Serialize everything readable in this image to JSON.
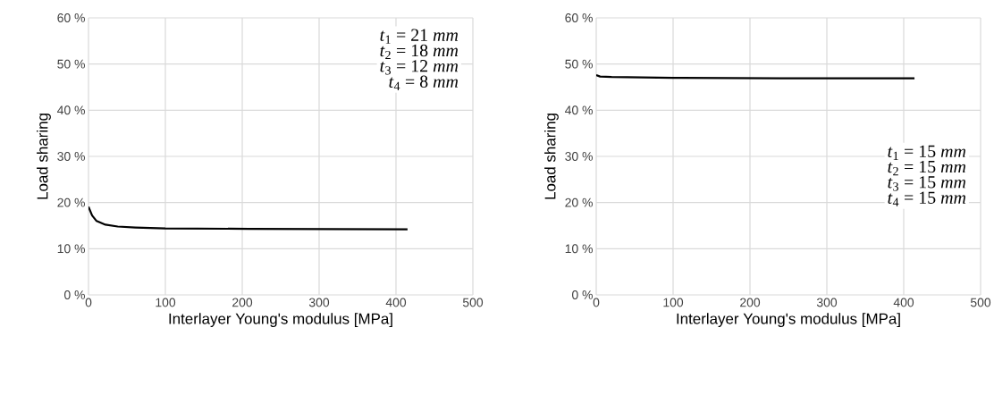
{
  "chart_data": [
    {
      "type": "line",
      "xlabel": "Interlayer Young's modulus [MPa]",
      "ylabel": "Load sharing",
      "series": [
        {
          "color": "#000000",
          "x": [
            0,
            4.7,
            10.5,
            22,
            38,
            61,
            100,
            209,
            415
          ],
          "values": [
            19.1,
            17.2,
            16.0,
            15.2,
            14.8,
            14.6,
            14.4,
            14.3,
            14.2
          ]
        }
      ],
      "xlim": [
        0,
        500
      ],
      "xticks": [
        0,
        100,
        200,
        300,
        400,
        500
      ],
      "ylim": [
        0,
        60
      ],
      "yticks": [
        {
          "value": 0,
          "label": "0 %"
        },
        {
          "value": 10,
          "label": "10 %"
        },
        {
          "value": 20,
          "label": "20 %"
        },
        {
          "value": 30,
          "label": "30 %"
        },
        {
          "value": 40,
          "label": "40 %"
        },
        {
          "value": 50,
          "label": "50 %"
        },
        {
          "value": 60,
          "label": "60 %"
        }
      ],
      "grid": true,
      "marker": "none",
      "line_style": "solid",
      "annotations": [
        "*t*$_{1}$ = 21 *mm*",
        "*t*$_{2}$ = 18 *mm*",
        "*t*$_{3}$ = 12 *mm*",
        "*t*$_{4}$ = 8 *mm*"
      ]
    },
    {
      "type": "line",
      "xlabel": "Interlayer Young's modulus [MPa]",
      "ylabel": "Load sharing",
      "series": [
        {
          "color": "#000000",
          "x": [
            0,
            5,
            20,
            100,
            240,
            414
          ],
          "values": [
            47.6,
            47.3,
            47.2,
            47.0,
            46.9,
            46.9
          ]
        }
      ],
      "xlim": [
        0,
        500
      ],
      "xticks": [
        0,
        100,
        200,
        300,
        400,
        500
      ],
      "ylim": [
        0,
        60
      ],
      "yticks": [
        {
          "value": 0,
          "label": "0 %"
        },
        {
          "value": 10,
          "label": "10 %"
        },
        {
          "value": 20,
          "label": "20 %"
        },
        {
          "value": 30,
          "label": "30 %"
        },
        {
          "value": 40,
          "label": "40 %"
        },
        {
          "value": 50,
          "label": "50 %"
        },
        {
          "value": 60,
          "label": "60 %"
        }
      ],
      "grid": true,
      "marker": "none",
      "line_style": "solid",
      "annotations": [
        "*t*$_{1}$ = 15 *mm*",
        "*t*$_{2}$ = 15 *mm*",
        "*t*$_{3}$ = 15 *mm*",
        "*t*$_{4}$ = 15 *mm*"
      ]
    }
  ]
}
